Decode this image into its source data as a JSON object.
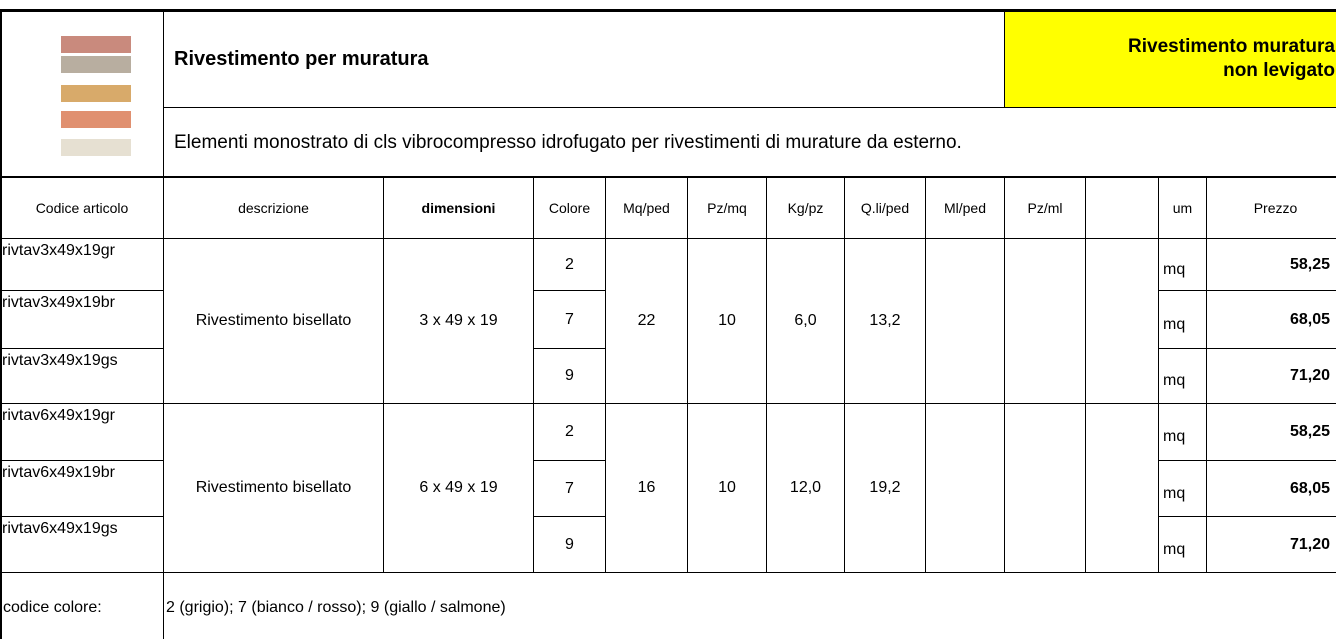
{
  "header": {
    "title": "Rivestimento per muratura",
    "badge": "Rivestimento muratura non levigato",
    "description": "Elementi monostrato di cls vibrocompresso idrofugato per rivestimenti di murature da esterno."
  },
  "table": {
    "columns": [
      "Codice articolo",
      "descrizione",
      "dimensioni",
      "Colore",
      "Mq/ped",
      "Pz/mq",
      "Kg/pz",
      "Q.li/ped",
      "Ml/ped",
      "Pz/ml",
      "um",
      "Prezzo"
    ],
    "groups": [
      {
        "description": "Rivestimento bisellato",
        "dimensions": "3 x 49 x 19",
        "mq_ped": "22",
        "pz_mq": "10",
        "kg_pz": "6,0",
        "ql_ped": "13,2",
        "items": [
          {
            "code": "rivtav3x49x19gr",
            "colore": "2",
            "um": "mq",
            "prezzo": "58,25"
          },
          {
            "code": "rivtav3x49x19br",
            "colore": "7",
            "um": "mq",
            "prezzo": "68,05"
          },
          {
            "code": "rivtav3x49x19gs",
            "colore": "9",
            "um": "mq",
            "prezzo": "71,20"
          }
        ]
      },
      {
        "description": "Rivestimento bisellato",
        "dimensions": "6 x 49 x 19",
        "mq_ped": "16",
        "pz_mq": "10",
        "kg_pz": "12,0",
        "ql_ped": "19,2",
        "items": [
          {
            "code": "rivtav6x49x19gr",
            "colore": "2",
            "um": "mq",
            "prezzo": "58,25"
          },
          {
            "code": "rivtav6x49x19br",
            "colore": "7",
            "um": "mq",
            "prezzo": "68,05"
          },
          {
            "code": "rivtav6x49x19gs",
            "colore": "9",
            "um": "mq",
            "prezzo": "71,20"
          }
        ]
      }
    ]
  },
  "footer": {
    "label": "codice colore:",
    "text": "2 (grigio); 7 (bianco / rosso); 9 (giallo / salmone)"
  }
}
